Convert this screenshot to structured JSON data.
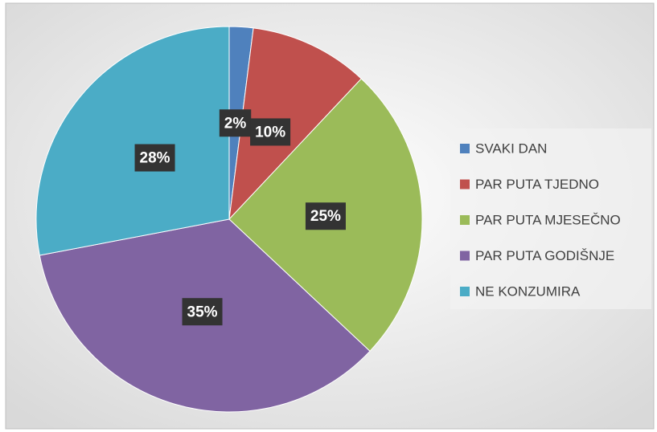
{
  "chart_data": {
    "type": "pie",
    "categories": [
      "SVAKI DAN",
      "PAR PUTA TJEDNO",
      "PAR PUTA MJESEČNO",
      "PAR PUTA GODIŠNJE",
      "NE KONZUMIRA"
    ],
    "values": [
      2,
      10,
      25,
      35,
      28
    ],
    "value_labels": [
      "2%",
      "10%",
      "25%",
      "35%",
      "28%"
    ],
    "colors": [
      "#4f81bd",
      "#c0504d",
      "#9bbb59",
      "#8064a2",
      "#4bacc6"
    ],
    "legend": "right"
  }
}
